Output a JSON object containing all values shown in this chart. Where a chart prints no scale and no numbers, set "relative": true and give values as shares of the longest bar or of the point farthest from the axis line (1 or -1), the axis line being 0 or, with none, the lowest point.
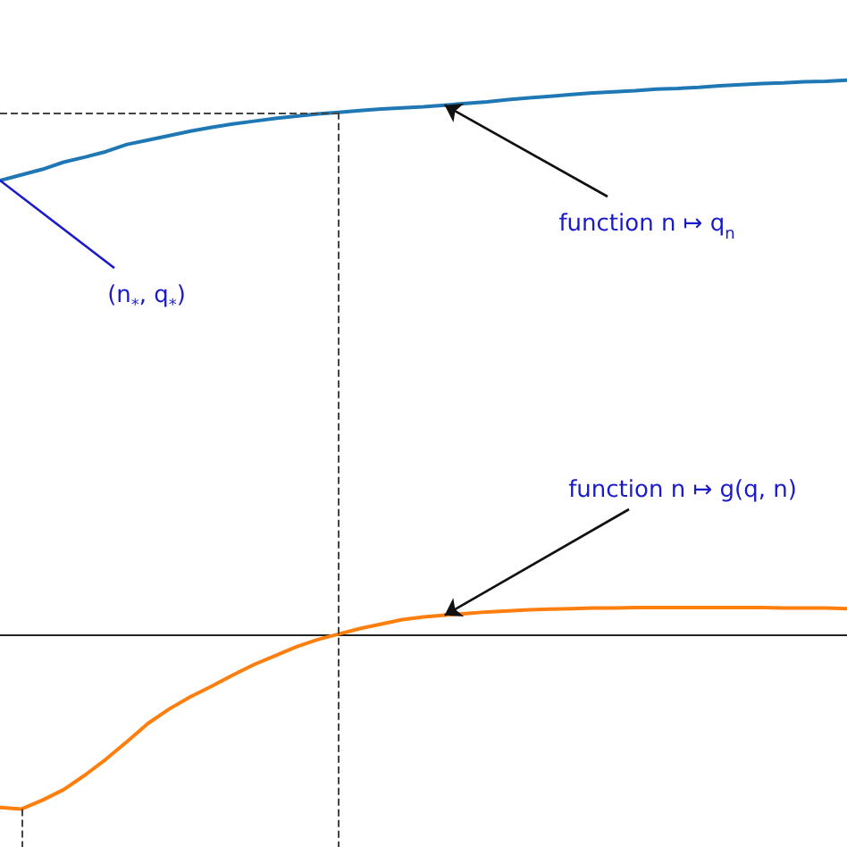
{
  "chart_data": {
    "type": "line",
    "relative": true,
    "categories": [
      null,
      null,
      null,
      null,
      null,
      null,
      null,
      null,
      null,
      null,
      null,
      null,
      null,
      null,
      null,
      null,
      null,
      null,
      null,
      null,
      null,
      null,
      null,
      null,
      null,
      null,
      null,
      null,
      null,
      null,
      null,
      null,
      null,
      null,
      null,
      null,
      null,
      null,
      null,
      null,
      null
    ],
    "series": [
      {
        "color": "#1f77b4",
        "values": [
          0.819,
          0.829,
          0.839,
          0.852,
          0.861,
          0.871,
          0.884,
          0.892,
          0.9,
          0.908,
          0.915,
          0.921,
          0.926,
          0.931,
          0.935,
          0.939,
          0.942,
          0.945,
          0.948,
          0.95,
          0.952,
          0.955,
          0.958,
          0.961,
          0.965,
          0.968,
          0.971,
          0.974,
          0.977,
          0.979,
          0.981,
          0.984,
          0.985,
          0.987,
          0.99,
          0.992,
          0.994,
          0.995,
          0.997,
          0.998,
          1
        ]
      },
      {
        "color": "#ff7f0e",
        "values": [
          -0.313,
          -0.316,
          -0.3,
          -0.281,
          -0.255,
          -0.226,
          -0.194,
          -0.161,
          -0.135,
          -0.113,
          -0.094,
          -0.074,
          -0.055,
          -0.039,
          -0.023,
          -0.01,
          0,
          0.01,
          0.018,
          0.026,
          0.031,
          0.034,
          0.037,
          0.04,
          0.042,
          0.044,
          0.045,
          0.046,
          0.047,
          0.047,
          0.048,
          0.048,
          0.048,
          0.048,
          0.048,
          0.048,
          0.048,
          0.047,
          0.047,
          0.047,
          0.046
        ]
      }
    ],
    "ref_lines": [
      {
        "axis": "y",
        "value": 0.942
      }
    ],
    "annotations": [
      "(n$_{*}$, q$_{*}$)",
      "function n ↦ q$_{n}$",
      "function n ↦ g(q, n)"
    ]
  }
}
